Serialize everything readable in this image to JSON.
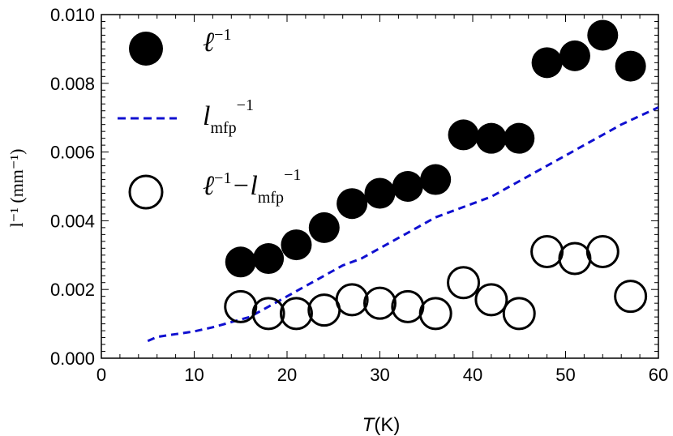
{
  "chart_data": {
    "type": "scatter",
    "xlabel": "T(K)",
    "xlabel_var": "T",
    "xlabel_unit": "(K)",
    "ylabel": "l⁻¹ (mm⁻¹)",
    "xlim": [
      0,
      60
    ],
    "ylim": [
      0.0,
      0.01
    ],
    "xticks": [
      0,
      10,
      20,
      30,
      40,
      50,
      60
    ],
    "xtick_labels": [
      "0",
      "10",
      "20",
      "30",
      "40",
      "50",
      "60"
    ],
    "yticks": [
      0.0,
      0.002,
      0.004,
      0.006,
      0.008,
      0.01
    ],
    "ytick_labels": [
      "0.000",
      "0.002",
      "0.004",
      "0.006",
      "0.008",
      "0.010"
    ],
    "legend_position": "top-left",
    "series": [
      {
        "name": "ℓ⁻¹",
        "legend_main": "ℓ",
        "legend_sup": "−1",
        "marker": "filled-circle",
        "color": "#000000",
        "x": [
          15,
          18,
          21,
          24,
          27,
          30,
          33,
          36,
          39,
          42,
          45,
          48,
          51,
          54,
          57
        ],
        "y": [
          0.0028,
          0.0029,
          0.0033,
          0.0038,
          0.0045,
          0.0048,
          0.005,
          0.0052,
          0.0065,
          0.0064,
          0.0064,
          0.0086,
          0.0088,
          0.0094,
          0.0085
        ]
      },
      {
        "name": "l_mfp⁻¹",
        "legend_main": "l",
        "legend_sub": "mfp",
        "legend_sup": "−1",
        "marker": "dashed-line",
        "color": "#1010d0",
        "x": [
          5,
          6,
          8,
          10,
          12,
          14,
          16,
          18,
          20,
          22,
          24,
          26,
          28,
          30,
          32,
          34,
          36,
          38,
          40,
          42,
          44,
          46,
          48,
          50,
          52,
          54,
          56,
          58,
          60
        ],
        "y": [
          0.0005,
          0.00062,
          0.0007,
          0.00078,
          0.0009,
          0.00105,
          0.0012,
          0.0015,
          0.0018,
          0.0021,
          0.0024,
          0.0027,
          0.0029,
          0.0032,
          0.0035,
          0.0038,
          0.0041,
          0.0043,
          0.0045,
          0.0047,
          0.005,
          0.0053,
          0.0056,
          0.0059,
          0.0062,
          0.0065,
          0.0068,
          0.00705,
          0.0073
        ]
      },
      {
        "name": "ℓ⁻¹−l_mfp⁻¹",
        "legend_main": "ℓ",
        "legend_sup": "−1",
        "legend_main2": "−l",
        "legend_sub2": "mfp",
        "legend_sup2": "−1",
        "marker": "open-circle",
        "color": "#000000",
        "x": [
          15,
          18,
          21,
          24,
          27,
          30,
          33,
          36,
          39,
          42,
          45,
          48,
          51,
          54,
          57
        ],
        "y": [
          0.0015,
          0.0013,
          0.0013,
          0.0014,
          0.0017,
          0.0016,
          0.0015,
          0.0013,
          0.0022,
          0.0017,
          0.0013,
          0.0031,
          0.0029,
          0.0031,
          0.0018
        ]
      }
    ]
  }
}
